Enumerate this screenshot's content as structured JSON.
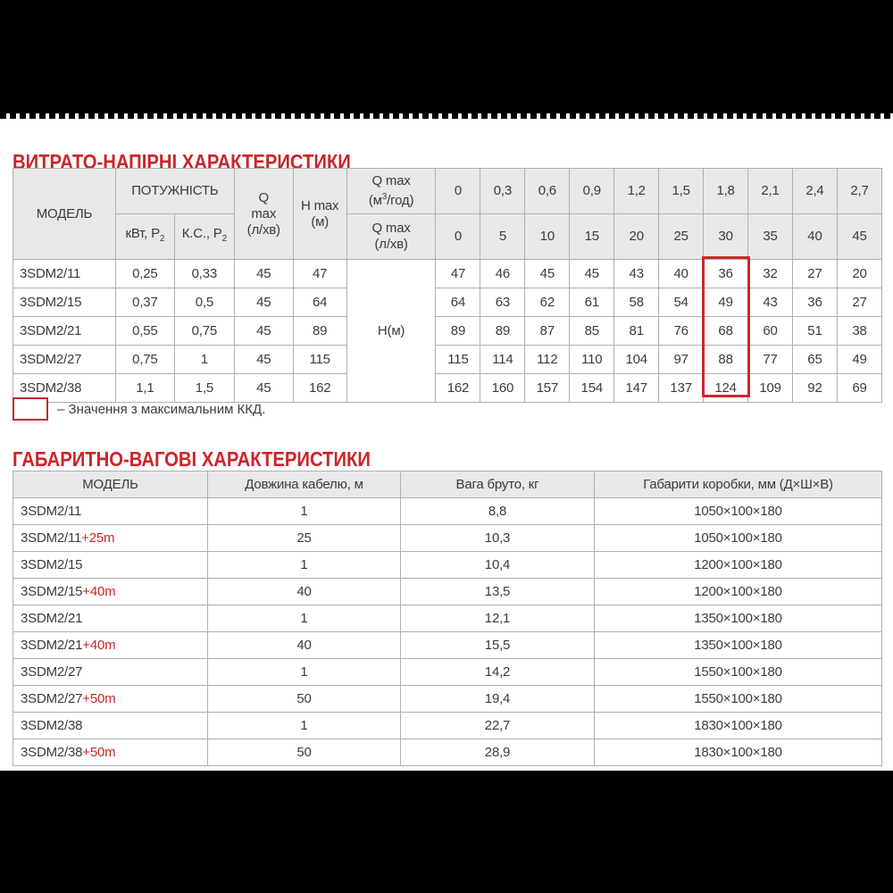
{
  "colors": {
    "accent_red": "#cb252b",
    "highlight_box_red": "#d0262b",
    "header_bg": "#e8e8e8",
    "table_border": "#b0b0b0",
    "text": "#3b3b3b",
    "bar_black": "#000000"
  },
  "section_flow": {
    "title": "ВИТРАТО-НАПІРНІ ХАРАКТЕРИСТИКИ",
    "header": {
      "model": "МОДЕЛЬ",
      "power": "ПОТУЖНІСТЬ",
      "power_kw_main": "кВт, P",
      "power_kw_sub": "2",
      "power_hp_main": "К.С., P",
      "power_hp_sub": "2",
      "qmax_l1": "Q",
      "qmax_l2": "max",
      "qmax_l3": "(л/хв)",
      "hmax_l1": "H max",
      "hmax_l2": "(м)",
      "q_m3h_l1": "Q max",
      "q_m3h_pre": "(м",
      "q_m3h_sup": "3",
      "q_m3h_post": "/год)",
      "q_lmin_l1": "Q max",
      "q_lmin_l2": "(л/хв)",
      "flow_m3h": [
        "0",
        "0,3",
        "0,6",
        "0,9",
        "1,2",
        "1,5",
        "1,8",
        "2,1",
        "2,4",
        "2,7"
      ],
      "flow_lmin": [
        "0",
        "5",
        "10",
        "15",
        "20",
        "25",
        "30",
        "35",
        "40",
        "45"
      ]
    },
    "h_unit_label": "Н(м)",
    "rows": [
      {
        "model": "3SDM2/11",
        "kw": "0,25",
        "hp": "0,33",
        "qmax": "45",
        "hmax": "47",
        "values": [
          "47",
          "46",
          "45",
          "45",
          "43",
          "40",
          "36",
          "32",
          "27",
          "20"
        ]
      },
      {
        "model": "3SDM2/15",
        "kw": "0,37",
        "hp": "0,5",
        "qmax": "45",
        "hmax": "64",
        "values": [
          "64",
          "63",
          "62",
          "61",
          "58",
          "54",
          "49",
          "43",
          "36",
          "27"
        ]
      },
      {
        "model": "3SDM2/21",
        "kw": "0,55",
        "hp": "0,75",
        "qmax": "45",
        "hmax": "89",
        "values": [
          "89",
          "89",
          "87",
          "85",
          "81",
          "76",
          "68",
          "60",
          "51",
          "38"
        ]
      },
      {
        "model": "3SDM2/27",
        "kw": "0,75",
        "hp": "1",
        "qmax": "45",
        "hmax": "115",
        "values": [
          "115",
          "114",
          "112",
          "110",
          "104",
          "97",
          "88",
          "77",
          "65",
          "49"
        ]
      },
      {
        "model": "3SDM2/38",
        "kw": "1,1",
        "hp": "1,5",
        "qmax": "45",
        "hmax": "162",
        "values": [
          "162",
          "160",
          "157",
          "154",
          "147",
          "137",
          "124",
          "109",
          "92",
          "69"
        ]
      }
    ],
    "highlight_column_index": 6,
    "legend_text": "– Значення з максимальним ККД."
  },
  "section_dimensions": {
    "title": "ГАБАРИТНО-ВАГОВІ ХАРАКТЕРИСТИКИ",
    "headers": [
      "МОДЕЛЬ",
      "Довжина кабелю, м",
      "Вага бруто, кг",
      "Габарити коробки, мм (Д×Ш×В)"
    ],
    "rows": [
      {
        "model": "3SDM2/11",
        "suffix": "",
        "cable": "1",
        "weight": "8,8",
        "box": "1050×100×180"
      },
      {
        "model": "3SDM2/11",
        "suffix": "+25m",
        "cable": "25",
        "weight": "10,3",
        "box": "1050×100×180"
      },
      {
        "model": "3SDM2/15",
        "suffix": "",
        "cable": "1",
        "weight": "10,4",
        "box": "1200×100×180"
      },
      {
        "model": "3SDM2/15",
        "suffix": "+40m",
        "cable": "40",
        "weight": "13,5",
        "box": "1200×100×180"
      },
      {
        "model": "3SDM2/21",
        "suffix": "",
        "cable": "1",
        "weight": "12,1",
        "box": "1350×100×180"
      },
      {
        "model": "3SDM2/21",
        "suffix": "+40m",
        "cable": "40",
        "weight": "15,5",
        "box": "1350×100×180"
      },
      {
        "model": "3SDM2/27",
        "suffix": "",
        "cable": "1",
        "weight": "14,2",
        "box": "1550×100×180"
      },
      {
        "model": "3SDM2/27",
        "suffix": "+50m",
        "cable": "50",
        "weight": "19,4",
        "box": "1550×100×180"
      },
      {
        "model": "3SDM2/38",
        "suffix": "",
        "cable": "1",
        "weight": "22,7",
        "box": "1830×100×180"
      },
      {
        "model": "3SDM2/38",
        "suffix": "+50m",
        "cable": "50",
        "weight": "28,9",
        "box": "1830×100×180"
      }
    ]
  }
}
